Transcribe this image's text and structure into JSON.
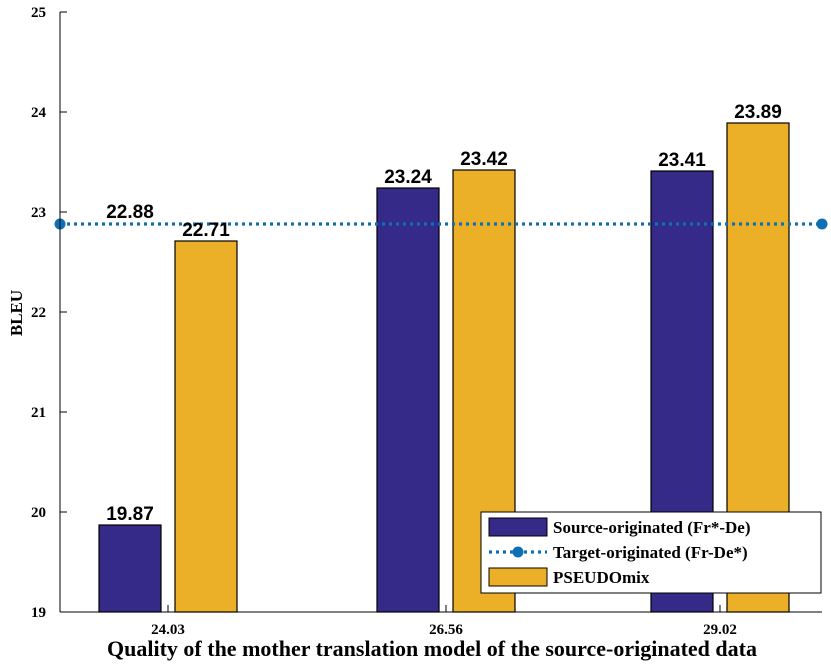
{
  "chart_data": {
    "type": "bar",
    "categories": [
      "24.03",
      "26.56",
      "29.02"
    ],
    "series": [
      {
        "name": "Source-originated (Fr*-De)",
        "kind": "bar",
        "color": "#352a87",
        "values": [
          19.87,
          23.24,
          23.41
        ],
        "labels": [
          "19.87",
          "23.24",
          "23.41"
        ]
      },
      {
        "name": "PSEUDOmix",
        "kind": "bar",
        "color": "#ebb028",
        "values": [
          22.71,
          23.42,
          23.89
        ],
        "labels": [
          "22.71",
          "23.42",
          "23.89"
        ]
      },
      {
        "name": "Target-originated (Fr-De*)",
        "kind": "line",
        "color": "#0f6fb4",
        "style": "dotted",
        "value": 22.88,
        "label": "22.88"
      }
    ],
    "legend_order": [
      0,
      2,
      1
    ],
    "xlabel": "Quality of the mother translation model of the source-originated data",
    "ylabel": "BLEU",
    "ylim": [
      19,
      25
    ],
    "yticks": [
      "19",
      "20",
      "21",
      "22",
      "23",
      "24",
      "25"
    ],
    "grid": false,
    "legend_position": "bottom-right"
  }
}
